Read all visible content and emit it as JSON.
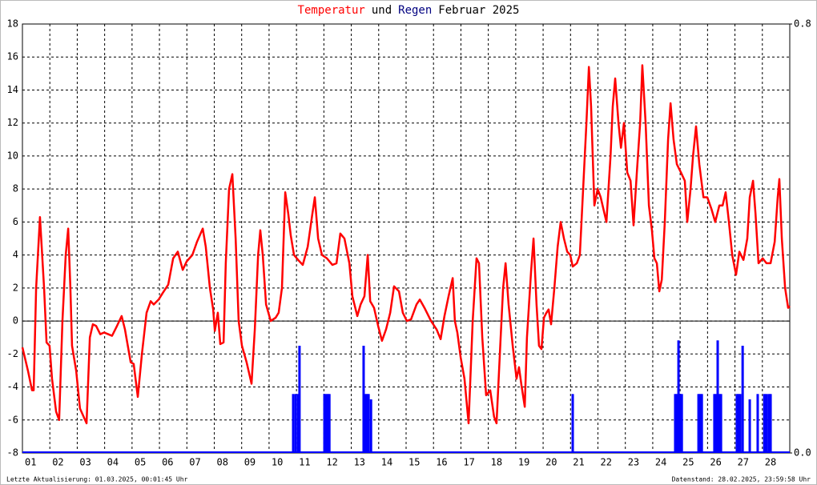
{
  "chart_data": {
    "type": "line",
    "title": [
      {
        "text": "Temperatur",
        "color": "#ff0000"
      },
      {
        "text": "und",
        "color": "#000000"
      },
      {
        "text": "Regen",
        "color": "#000080"
      },
      {
        "text": "Februar 2025",
        "color": "#000000"
      }
    ],
    "xlim": [
      0,
      28
    ],
    "xticks": [
      {
        "value": 0,
        "label": "01"
      },
      {
        "value": 1,
        "label": "02"
      },
      {
        "value": 2,
        "label": "03"
      },
      {
        "value": 3,
        "label": "04"
      },
      {
        "value": 4,
        "label": "05"
      },
      {
        "value": 5,
        "label": "06"
      },
      {
        "value": 6,
        "label": "07"
      },
      {
        "value": 7,
        "label": "08"
      },
      {
        "value": 8,
        "label": "09"
      },
      {
        "value": 9,
        "label": "10"
      },
      {
        "value": 10,
        "label": "11"
      },
      {
        "value": 11,
        "label": "12"
      },
      {
        "value": 12,
        "label": "13"
      },
      {
        "value": 13,
        "label": "14"
      },
      {
        "value": 14,
        "label": "15"
      },
      {
        "value": 15,
        "label": "16"
      },
      {
        "value": 16,
        "label": "17"
      },
      {
        "value": 17,
        "label": "18"
      },
      {
        "value": 18,
        "label": "19"
      },
      {
        "value": 19,
        "label": "20"
      },
      {
        "value": 20,
        "label": "21"
      },
      {
        "value": 21,
        "label": "22"
      },
      {
        "value": 22,
        "label": "23"
      },
      {
        "value": 23,
        "label": "24"
      },
      {
        "value": 24,
        "label": "25"
      },
      {
        "value": 25,
        "label": "26"
      },
      {
        "value": 26,
        "label": "27"
      },
      {
        "value": 27,
        "label": "28"
      }
    ],
    "ylim": [
      -8,
      18
    ],
    "yticks": [
      -8,
      -6,
      -4,
      -2,
      0,
      2,
      4,
      6,
      8,
      10,
      12,
      14,
      16,
      18
    ],
    "y2lim": [
      0,
      0.8
    ],
    "y2ticks": [
      {
        "value": 0,
        "label": "0.0"
      },
      0.8
    ],
    "grid": true,
    "zero_line": true,
    "series": [
      {
        "name": "Temperatur",
        "color": "#ff0000",
        "type": "line",
        "x": [
          0,
          0.2,
          0.35,
          0.41,
          0.5,
          0.64,
          0.79,
          0.88,
          0.99,
          1.08,
          1.23,
          1.34,
          1.46,
          1.58,
          1.67,
          1.75,
          1.81,
          1.96,
          2.1,
          2.34,
          2.46,
          2.57,
          2.69,
          2.84,
          2.98,
          3.13,
          3.27,
          3.45,
          3.62,
          3.74,
          3.95,
          4.06,
          4.21,
          4.36,
          4.53,
          4.68,
          4.79,
          4.97,
          5.12,
          5.32,
          5.5,
          5.67,
          5.85,
          5.99,
          6.2,
          6.37,
          6.58,
          6.69,
          6.84,
          6.96,
          7.02,
          7.13,
          7.22,
          7.34,
          7.42,
          7.54,
          7.66,
          7.78,
          7.89,
          8.01,
          8.18,
          8.36,
          8.48,
          8.6,
          8.68,
          8.77,
          8.89,
          9.06,
          9.24,
          9.35,
          9.47,
          9.59,
          9.7,
          9.79,
          9.91,
          10.06,
          10.23,
          10.41,
          10.58,
          10.67,
          10.79,
          10.93,
          11.11,
          11.31,
          11.46,
          11.6,
          11.75,
          11.93,
          12.04,
          12.22,
          12.34,
          12.48,
          12.6,
          12.69,
          12.83,
          12.98,
          13.12,
          13.27,
          13.42,
          13.56,
          13.74,
          13.88,
          14.03,
          14.18,
          14.38,
          14.5,
          14.67,
          14.91,
          15.11,
          15.26,
          15.4,
          15.55,
          15.7,
          15.78,
          15.87,
          15.99,
          16.13,
          16.28,
          16.43,
          16.57,
          16.66,
          16.78,
          16.92,
          17.07,
          17.21,
          17.3,
          17.45,
          17.54,
          17.63,
          17.74,
          17.89,
          18.03,
          18.12,
          18.21,
          18.33,
          18.41,
          18.56,
          18.65,
          18.76,
          18.85,
          18.94,
          19.03,
          19.12,
          19.2,
          19.29,
          19.41,
          19.53,
          19.64,
          19.76,
          19.88,
          19.99,
          20.08,
          20.23,
          20.34,
          20.46,
          20.58,
          20.67,
          20.75,
          20.87,
          20.99,
          21.1,
          21.31,
          21.46,
          21.54,
          21.63,
          21.75,
          21.84,
          21.95,
          22.07,
          22.19,
          22.3,
          22.42,
          22.54,
          22.62,
          22.74,
          22.86,
          22.97,
          23.06,
          23.15,
          23.24,
          23.33,
          23.44,
          23.56,
          23.65,
          23.76,
          23.88,
          24.03,
          24.17,
          24.26,
          24.38,
          24.47,
          24.58,
          24.7,
          24.85,
          24.99,
          25.14,
          25.28,
          25.43,
          25.55,
          25.66,
          25.78,
          25.9,
          26.04,
          26.16,
          26.31,
          26.45,
          26.54,
          26.66,
          26.75,
          26.86,
          27.01,
          27.15,
          27.3,
          27.45,
          27.56,
          27.62,
          27.71,
          27.83,
          27.94,
          28.0
        ],
        "values": [
          -1.6,
          -3,
          -4.2,
          -4.2,
          2,
          6.3,
          2,
          -1.3,
          -1.5,
          -3.5,
          -5.5,
          -6,
          0,
          4,
          5.6,
          2,
          -1.5,
          -3,
          -5.3,
          -6.2,
          -1,
          -0.2,
          -0.3,
          -0.8,
          -0.7,
          -0.8,
          -0.9,
          -0.3,
          0.3,
          -0.5,
          -2.5,
          -2.6,
          -4.6,
          -2,
          0.5,
          1.2,
          1.0,
          1.3,
          1.7,
          2.2,
          3.8,
          4.2,
          3.1,
          3.6,
          4,
          4.8,
          5.6,
          4.5,
          2,
          0.7,
          -0.6,
          0.5,
          -1.4,
          -1.3,
          3.5,
          8,
          8.9,
          5,
          0,
          -1.5,
          -2.5,
          -3.8,
          -0.5,
          4,
          5.5,
          4,
          1,
          0,
          0.2,
          0.5,
          2,
          7.8,
          6.5,
          5.2,
          4,
          3.7,
          3.4,
          4.5,
          6.5,
          7.5,
          5,
          4,
          3.8,
          3.4,
          3.5,
          5.3,
          5,
          3.5,
          1.5,
          0.3,
          1,
          1.5,
          4,
          1.2,
          0.8,
          -0.3,
          -1.2,
          -0.5,
          0.5,
          2.1,
          1.8,
          0.5,
          0,
          0.1,
          1,
          1.3,
          0.8,
          0,
          -0.5,
          -1.1,
          0.3,
          1.5,
          2.6,
          0,
          -0.7,
          -2.2,
          -3.5,
          -6.2,
          0,
          3.8,
          3.5,
          -1,
          -4.5,
          -4.2,
          -5.8,
          -6.2,
          -1,
          2,
          3.5,
          1,
          -1.5,
          -3.5,
          -2.8,
          -3.9,
          -5.2,
          -1,
          3,
          5,
          1,
          -1.5,
          -1.7,
          0.2,
          0.5,
          0.7,
          -0.2,
          2,
          4.5,
          6,
          5,
          4.2,
          4,
          3.3,
          3.5,
          4,
          8,
          12,
          15.4,
          13,
          7,
          8,
          7.5,
          6,
          10,
          13,
          14.7,
          12,
          10.5,
          12,
          9,
          8.5,
          5.8,
          9,
          12,
          15.5,
          12,
          7,
          5.5,
          3.8,
          3.5,
          1.8,
          2.5,
          6,
          11,
          13.2,
          11,
          9.5,
          9,
          8.5,
          6,
          8,
          10,
          11.8,
          9.5,
          7.5,
          7.5,
          6.8,
          6,
          7,
          7,
          7.8,
          6,
          4,
          2.8,
          4.2,
          3.7,
          5,
          7.5,
          8.5,
          6.5,
          3.5,
          3.8,
          3.5,
          3.5,
          4.8,
          7.5,
          8.6,
          5,
          2,
          0.8,
          0.9
        ]
      },
      {
        "name": "Regen",
        "color": "#0000ff",
        "type": "bar",
        "axis": "y2",
        "x": [
          9.88,
          9.97,
          10.06,
          10.11,
          11.02,
          11.08,
          11.14,
          11.2,
          12.45,
          12.51,
          12.57,
          12.63,
          12.72,
          20.08,
          23.82,
          23.88,
          23.94,
          24.0,
          24.06,
          24.67,
          24.73,
          24.79,
          25.25,
          25.31,
          25.37,
          25.43,
          25.49,
          26.07,
          26.13,
          26.19,
          26.28,
          26.54,
          26.83,
          27.07,
          27.15,
          27.24,
          27.3
        ],
        "values": [
          0.11,
          0.11,
          0.11,
          0.2,
          0.11,
          0.11,
          0.11,
          0.11,
          0.2,
          0.11,
          0.11,
          0.11,
          0.1,
          0.11,
          0.11,
          0.11,
          0.21,
          0.11,
          0.11,
          0.11,
          0.11,
          0.11,
          0.11,
          0.11,
          0.21,
          0.11,
          0.11,
          0.11,
          0.11,
          0.11,
          0.2,
          0.1,
          0.11,
          0.11,
          0.11,
          0.11,
          0.11
        ]
      }
    ],
    "footer_left": "Letzte Aktualisierung: 01.03.2025, 00:01:45 Uhr",
    "footer_right": "Datenstand: 28.02.2025, 23:59:58 Uhr"
  }
}
